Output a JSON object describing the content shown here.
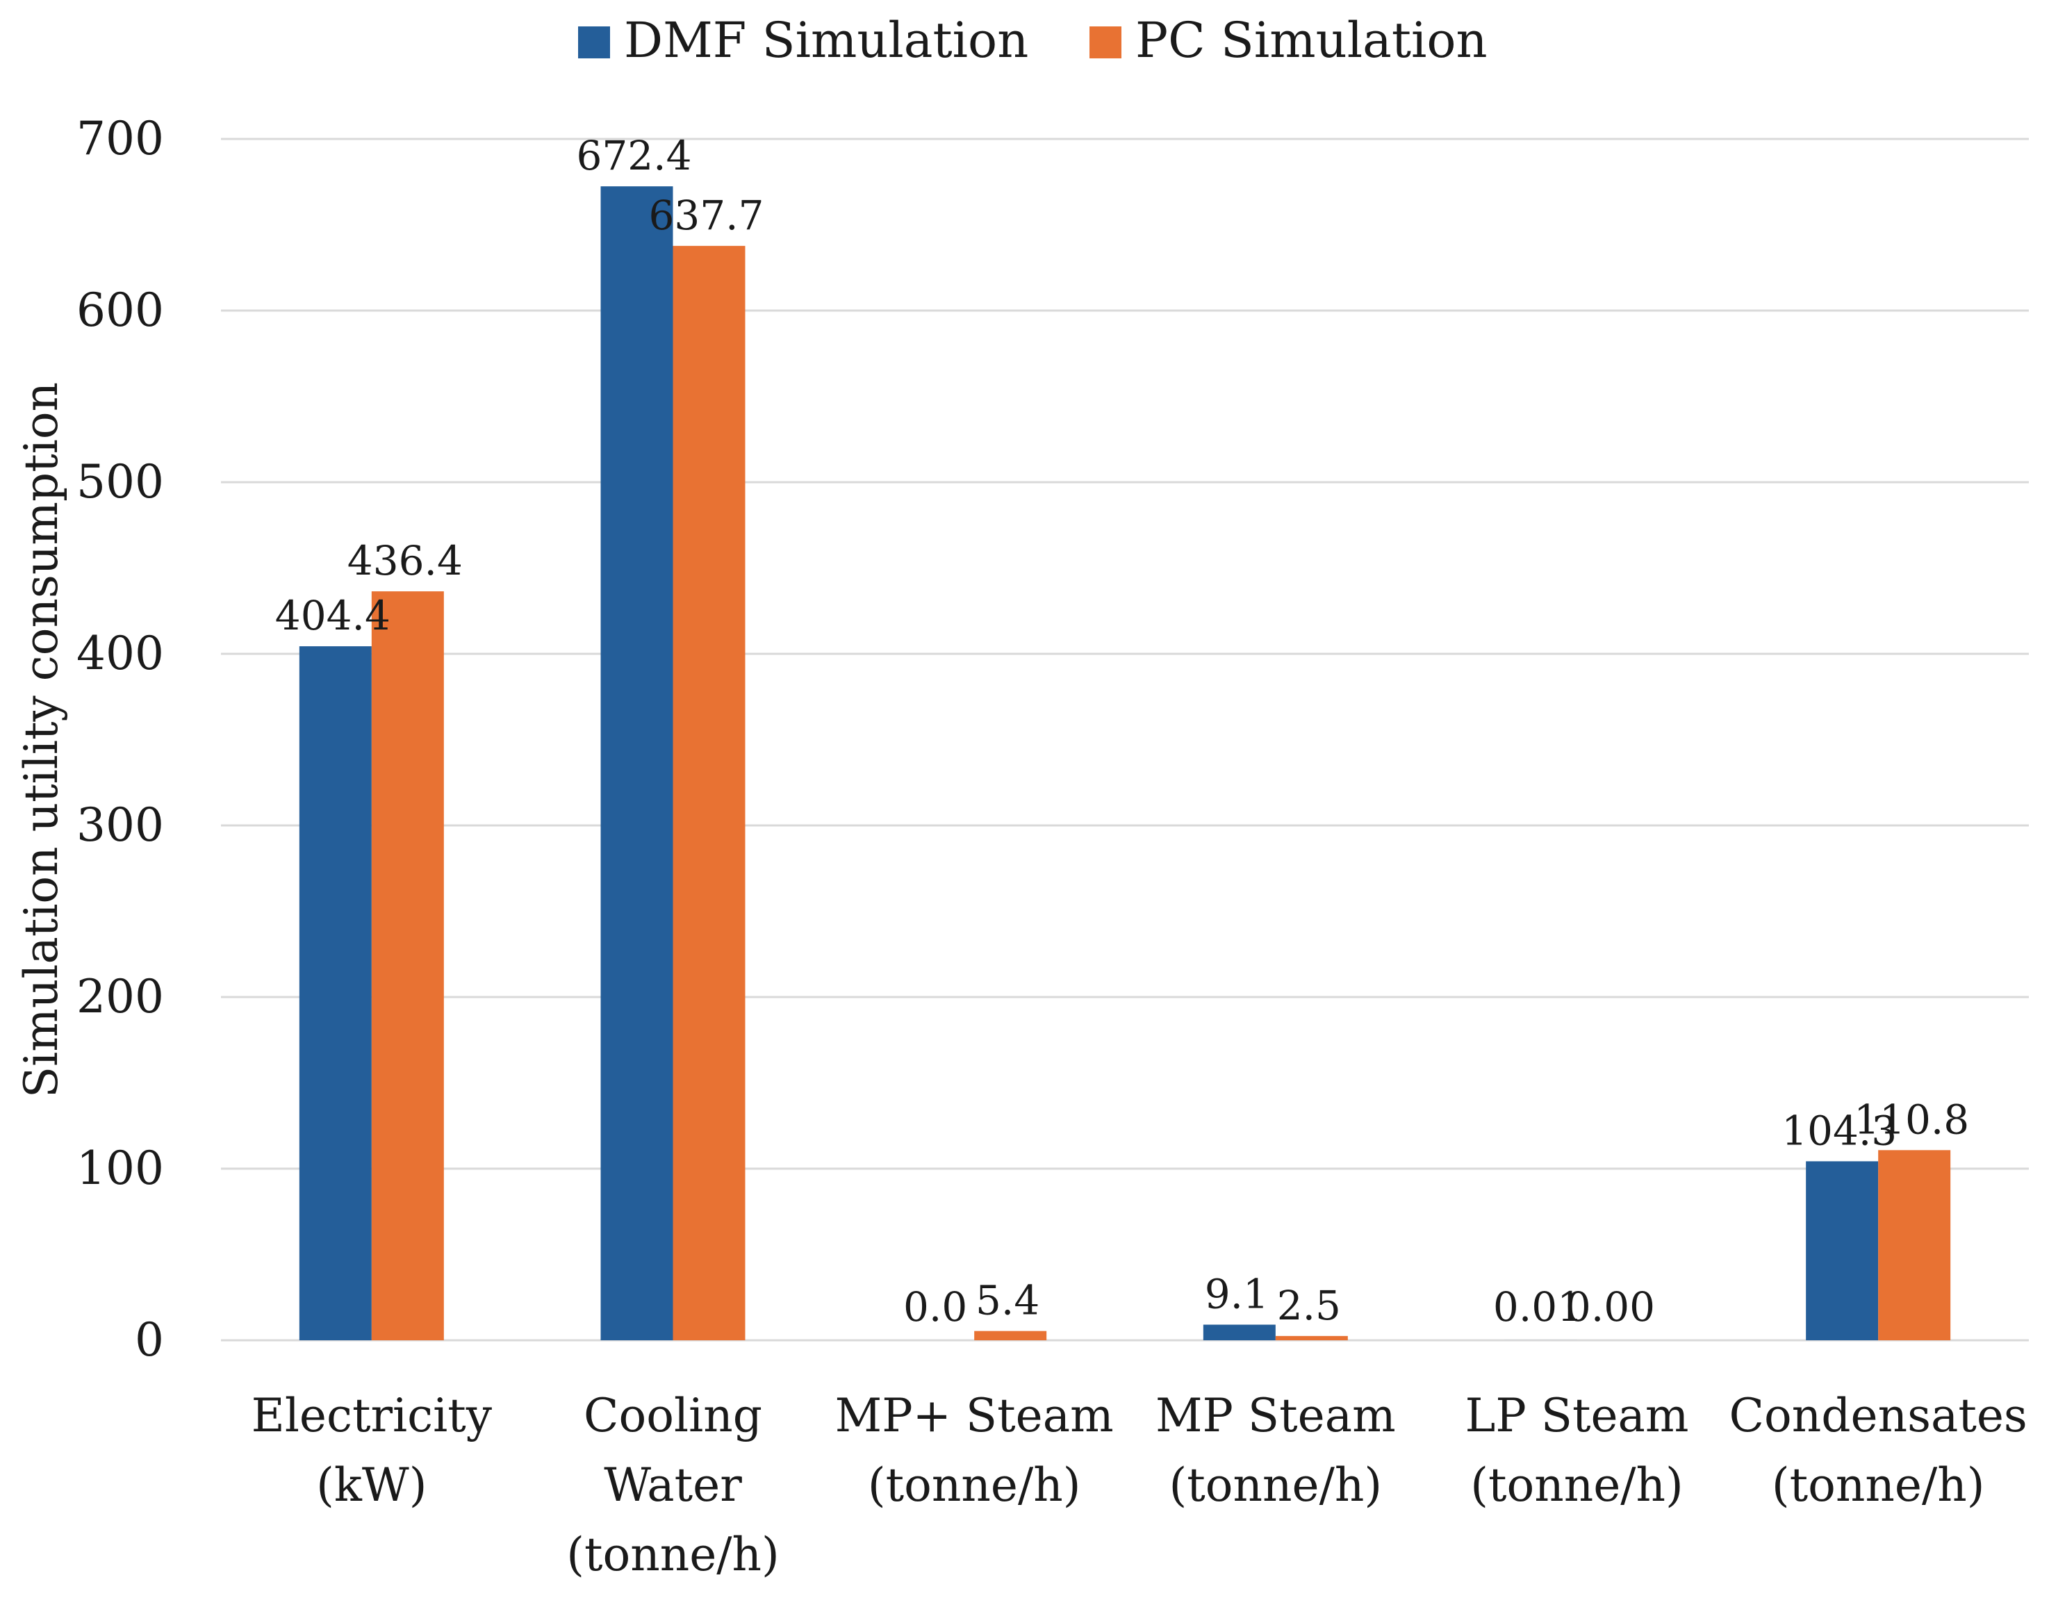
{
  "chart_data": {
    "type": "bar",
    "title": "",
    "xlabel": "",
    "ylabel": "Simulation utility consumption",
    "ylim": [
      0,
      700
    ],
    "yticks": [
      0,
      100,
      200,
      300,
      400,
      500,
      600,
      700
    ],
    "grid": true,
    "legend_position": "top-center",
    "categories": [
      [
        "Electricity",
        "(kW)"
      ],
      [
        "Cooling",
        "Water",
        "(tonne/h)"
      ],
      [
        "MP+ Steam",
        "(tonne/h)"
      ],
      [
        "MP Steam",
        "(tonne/h)"
      ],
      [
        "LP Steam",
        "(tonne/h)"
      ],
      [
        "Condensates",
        "(tonne/h)"
      ]
    ],
    "series": [
      {
        "name": "DMF Simulation",
        "color": "#245E99",
        "values": [
          404.4,
          672.4,
          0.0,
          9.1,
          0.01,
          104.3
        ],
        "labels": [
          "404.4",
          "672.4",
          "0.0",
          "9.1",
          "0.01",
          "104.3"
        ]
      },
      {
        "name": "PC Simulation",
        "color": "#E87233",
        "values": [
          436.4,
          637.7,
          5.4,
          2.5,
          0.0,
          110.8
        ],
        "labels": [
          "436.4",
          "637.7",
          "5.4",
          "2.5",
          "0.00",
          "110.8"
        ]
      }
    ]
  }
}
